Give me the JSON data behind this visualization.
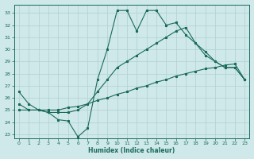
{
  "xlabel": "Humidex (Indice chaleur)",
  "ylabel": "",
  "bg_color": "#cfe8ea",
  "line_color": "#1a6b5a",
  "grid_color": "#afd0d3",
  "xlim": [
    -0.5,
    23.5
  ],
  "ylim": [
    22.7,
    33.7
  ],
  "xticks": [
    0,
    1,
    2,
    3,
    4,
    5,
    6,
    7,
    8,
    9,
    10,
    11,
    12,
    13,
    14,
    15,
    16,
    17,
    18,
    19,
    20,
    21,
    22,
    23
  ],
  "yticks": [
    23,
    24,
    25,
    26,
    27,
    28,
    29,
    30,
    31,
    32,
    33
  ],
  "line1_x": [
    0,
    1,
    2,
    3,
    4,
    5,
    6,
    7,
    8,
    9,
    10,
    11,
    12,
    13,
    14,
    15,
    16,
    17,
    18,
    19,
    20,
    21,
    22,
    23
  ],
  "line1_y": [
    26.5,
    25.5,
    25.0,
    24.8,
    24.2,
    24.1,
    22.8,
    23.5,
    27.5,
    30.0,
    33.2,
    33.2,
    31.5,
    33.2,
    33.2,
    32.0,
    32.2,
    31.2,
    30.5,
    29.8,
    29.0,
    28.5,
    28.5,
    27.5
  ],
  "line2_x": [
    0,
    1,
    2,
    3,
    4,
    5,
    6,
    7,
    8,
    9,
    10,
    11,
    12,
    13,
    14,
    15,
    16,
    17,
    18,
    19,
    20,
    21,
    22,
    23
  ],
  "line2_y": [
    25.5,
    25.0,
    25.0,
    24.8,
    24.8,
    24.8,
    25.0,
    25.5,
    26.5,
    27.5,
    28.5,
    29.0,
    29.5,
    30.0,
    30.5,
    31.0,
    31.5,
    31.8,
    30.5,
    29.5,
    29.0,
    28.5,
    28.5,
    27.5
  ],
  "line3_x": [
    0,
    1,
    2,
    3,
    4,
    5,
    6,
    7,
    8,
    9,
    10,
    11,
    12,
    13,
    14,
    15,
    16,
    17,
    18,
    19,
    20,
    21,
    22,
    23
  ],
  "line3_y": [
    25.0,
    25.0,
    25.0,
    25.0,
    25.0,
    25.2,
    25.3,
    25.5,
    25.8,
    26.0,
    26.3,
    26.5,
    26.8,
    27.0,
    27.3,
    27.5,
    27.8,
    28.0,
    28.2,
    28.4,
    28.5,
    28.7,
    28.8,
    27.5
  ]
}
